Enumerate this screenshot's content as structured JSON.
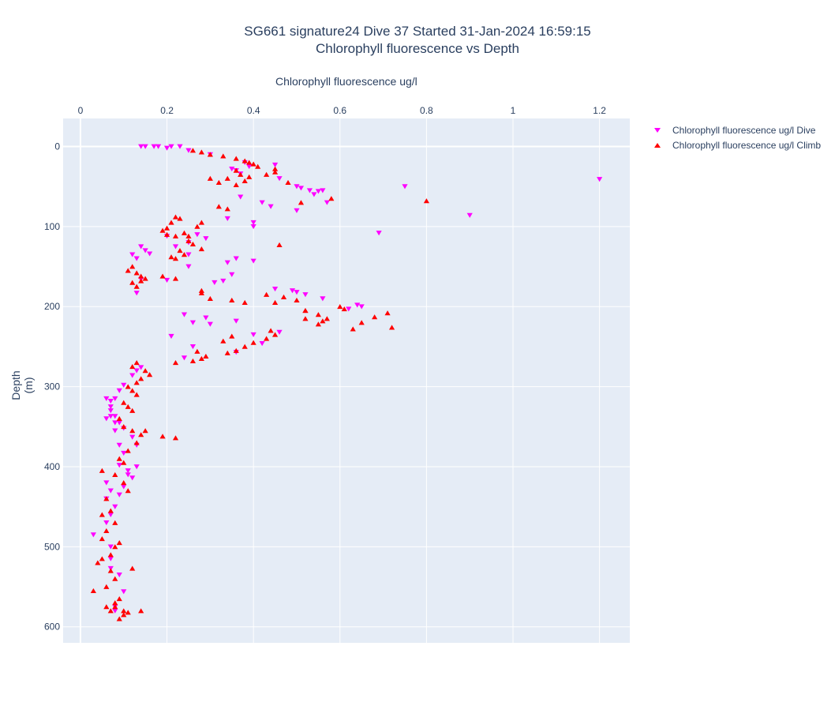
{
  "chart_data": {
    "type": "scatter",
    "title": "SG661 signature24 Dive 37 Started 31-Jan-2024 16:59:15",
    "subtitle": "Chlorophyll fluorescence vs Depth",
    "xlabel": "Chlorophyll fluorescence ug/l",
    "ylabel": "Depth (m)",
    "x_axis_position": "top",
    "y_reversed": true,
    "xlim": [
      -0.04,
      1.27
    ],
    "ylim": [
      -35,
      620
    ],
    "xticks": [
      0,
      0.2,
      0.4,
      0.6,
      0.8,
      1,
      1.2
    ],
    "xtick_labels": [
      "0",
      "0.2",
      "0.4",
      "0.6",
      "0.8",
      "1",
      "1.2"
    ],
    "yticks": [
      0,
      100,
      200,
      300,
      400,
      500,
      600
    ],
    "ytick_labels": [
      "0",
      "100",
      "200",
      "300",
      "400",
      "500",
      "600"
    ],
    "grid": true,
    "legend_position": "top-right",
    "series": [
      {
        "name": "Chlorophyll fluorescence ug/l Dive",
        "color": "#ff00ff",
        "marker": "triangle-down",
        "x": [
          0.14,
          0.15,
          0.17,
          0.18,
          0.2,
          0.21,
          0.23,
          0.25,
          0.3,
          0.35,
          0.36,
          0.37,
          0.38,
          0.39,
          0.45,
          0.46,
          0.5,
          0.51,
          0.53,
          0.54,
          0.55,
          0.56,
          0.57,
          0.75,
          1.2,
          0.9,
          0.69,
          0.5,
          0.44,
          0.42,
          0.37,
          0.34,
          0.4,
          0.4,
          0.29,
          0.25,
          0.22,
          0.2,
          0.27,
          0.14,
          0.15,
          0.13,
          0.12,
          0.16,
          0.2,
          0.25,
          0.25,
          0.34,
          0.36,
          0.35,
          0.4,
          0.13,
          0.14,
          0.31,
          0.33,
          0.45,
          0.49,
          0.5,
          0.52,
          0.56,
          0.64,
          0.65,
          0.62,
          0.29,
          0.26,
          0.24,
          0.21,
          0.3,
          0.36,
          0.4,
          0.42,
          0.46,
          0.26,
          0.24,
          0.36,
          0.14,
          0.13,
          0.12,
          0.1,
          0.09,
          0.08,
          0.07,
          0.07,
          0.08,
          0.09,
          0.1,
          0.12,
          0.13,
          0.1,
          0.09,
          0.11,
          0.11,
          0.12,
          0.13,
          0.09,
          0.08,
          0.08,
          0.07,
          0.07,
          0.06,
          0.06,
          0.03,
          0.06,
          0.07,
          0.08,
          0.06,
          0.07,
          0.06,
          0.09,
          0.1,
          0.07,
          0.07,
          0.07,
          0.09,
          0.08,
          0.08,
          0.1
        ],
        "y": [
          0,
          0,
          0,
          0,
          2,
          0,
          0,
          5,
          10,
          28,
          30,
          34,
          20,
          25,
          23,
          40,
          50,
          52,
          55,
          60,
          56,
          55,
          70,
          50,
          41,
          86,
          108,
          80,
          75,
          70,
          63,
          90,
          95,
          100,
          115,
          120,
          125,
          112,
          110,
          125,
          130,
          140,
          135,
          134,
          167,
          150,
          135,
          145,
          140,
          160,
          143,
          183,
          166,
          170,
          168,
          178,
          180,
          182,
          185,
          190,
          198,
          200,
          203,
          214,
          220,
          210,
          237,
          222,
          218,
          235,
          246,
          232,
          250,
          264,
          257,
          276,
          280,
          286,
          298,
          305,
          315,
          318,
          330,
          337,
          345,
          352,
          363,
          373,
          383,
          398,
          405,
          410,
          414,
          400,
          373,
          355,
          345,
          337,
          325,
          315,
          340,
          485,
          470,
          460,
          450,
          440,
          430,
          420,
          435,
          425,
          500,
          515,
          527,
          535,
          575,
          580,
          556
        ]
      },
      {
        "name": "Chlorophyll fluorescence ug/l Climb",
        "color": "#ff0000",
        "marker": "triangle-up",
        "x": [
          0.26,
          0.28,
          0.3,
          0.33,
          0.36,
          0.38,
          0.39,
          0.4,
          0.41,
          0.36,
          0.37,
          0.39,
          0.34,
          0.32,
          0.36,
          0.38,
          0.43,
          0.45,
          0.45,
          0.48,
          0.51,
          0.58,
          0.8,
          0.3,
          0.32,
          0.34,
          0.22,
          0.23,
          0.21,
          0.2,
          0.19,
          0.2,
          0.22,
          0.24,
          0.25,
          0.27,
          0.28,
          0.25,
          0.26,
          0.28,
          0.23,
          0.24,
          0.22,
          0.21,
          0.46,
          0.12,
          0.11,
          0.13,
          0.14,
          0.15,
          0.12,
          0.13,
          0.14,
          0.19,
          0.22,
          0.28,
          0.28,
          0.3,
          0.35,
          0.38,
          0.43,
          0.45,
          0.47,
          0.5,
          0.52,
          0.55,
          0.57,
          0.6,
          0.61,
          0.63,
          0.65,
          0.68,
          0.71,
          0.72,
          0.56,
          0.55,
          0.52,
          0.52,
          0.44,
          0.45,
          0.43,
          0.4,
          0.38,
          0.35,
          0.33,
          0.36,
          0.34,
          0.29,
          0.28,
          0.26,
          0.27,
          0.22,
          0.13,
          0.12,
          0.15,
          0.16,
          0.14,
          0.13,
          0.11,
          0.12,
          0.13,
          0.1,
          0.11,
          0.12,
          0.09,
          0.1,
          0.12,
          0.14,
          0.15,
          0.19,
          0.22,
          0.13,
          0.11,
          0.09,
          0.1,
          0.05,
          0.08,
          0.1,
          0.11,
          0.06,
          0.07,
          0.05,
          0.08,
          0.06,
          0.05,
          0.09,
          0.08,
          0.07,
          0.05,
          0.04,
          0.07,
          0.08,
          0.06,
          0.03,
          0.12,
          0.09,
          0.08,
          0.06,
          0.07,
          0.08,
          0.1,
          0.14,
          0.11,
          0.1,
          0.09
        ],
        "y": [
          5,
          7,
          10,
          12,
          15,
          18,
          20,
          22,
          25,
          30,
          35,
          38,
          40,
          45,
          48,
          43,
          35,
          32,
          28,
          45,
          70,
          65,
          68,
          40,
          75,
          78,
          88,
          90,
          95,
          102,
          105,
          110,
          112,
          108,
          112,
          100,
          95,
          118,
          122,
          128,
          130,
          135,
          140,
          138,
          123,
          150,
          155,
          158,
          162,
          165,
          170,
          175,
          168,
          162,
          165,
          180,
          183,
          190,
          192,
          195,
          185,
          195,
          188,
          192,
          205,
          210,
          215,
          200,
          203,
          228,
          220,
          213,
          208,
          226,
          218,
          222,
          205,
          215,
          230,
          235,
          240,
          245,
          250,
          237,
          243,
          255,
          258,
          262,
          265,
          268,
          256,
          270,
          270,
          275,
          280,
          285,
          290,
          295,
          300,
          305,
          310,
          320,
          325,
          330,
          340,
          350,
          355,
          360,
          355,
          362,
          364,
          370,
          380,
          390,
          395,
          405,
          410,
          420,
          430,
          440,
          455,
          460,
          470,
          480,
          490,
          495,
          500,
          510,
          515,
          520,
          530,
          540,
          550,
          555,
          527,
          565,
          570,
          575,
          580,
          575,
          580,
          580,
          582,
          585,
          590
        ]
      }
    ]
  }
}
